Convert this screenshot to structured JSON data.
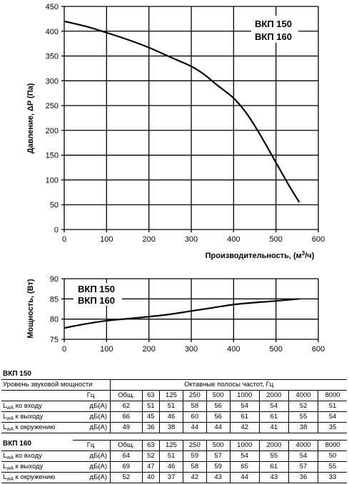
{
  "chart_data": [
    {
      "type": "line",
      "title": "",
      "xlabel": "Производительность, (м³/ч)",
      "ylabel": "Давление, ΔP (Па)",
      "xlim": [
        0,
        600
      ],
      "ylim": [
        0,
        450
      ],
      "x_ticks": [
        0,
        100,
        200,
        300,
        400,
        500,
        600
      ],
      "y_ticks": [
        0,
        50,
        100,
        150,
        200,
        250,
        300,
        350,
        400,
        450
      ],
      "grid": true,
      "legend_text": [
        "ВКП 150",
        "ВКП 160"
      ],
      "legend_placement": "top-right",
      "series": [
        {
          "name": "ВКП 150 / ВКП 160",
          "points": [
            [
              0,
              420
            ],
            [
              50,
              410
            ],
            [
              100,
              397
            ],
            [
              150,
              383
            ],
            [
              200,
              367
            ],
            [
              250,
              348
            ],
            [
              300,
              329
            ],
            [
              330,
              313
            ],
            [
              360,
              292
            ],
            [
              400,
              265
            ],
            [
              430,
              235
            ],
            [
              460,
              195
            ],
            [
              500,
              135
            ],
            [
              530,
              90
            ],
            [
              555,
              55
            ]
          ]
        }
      ]
    },
    {
      "type": "line",
      "title": "",
      "xlabel": "",
      "ylabel": "Мощность, (Вт)",
      "xlim": [
        0,
        600
      ],
      "ylim": [
        75,
        90
      ],
      "x_ticks": [
        0,
        100,
        200,
        300,
        400,
        500,
        600
      ],
      "y_ticks": [
        75,
        80,
        85,
        90
      ],
      "grid": true,
      "legend_text": [
        "ВКП 150",
        "ВКП 160"
      ],
      "legend_placement": "top-left",
      "series": [
        {
          "name": "ВКП 150 / ВКП 160",
          "points": [
            [
              0,
              77.8
            ],
            [
              50,
              78.8
            ],
            [
              100,
              79.6
            ],
            [
              150,
              80.1
            ],
            [
              200,
              80.6
            ],
            [
              250,
              81.2
            ],
            [
              300,
              82.0
            ],
            [
              350,
              82.8
            ],
            [
              400,
              83.6
            ],
            [
              450,
              84.1
            ],
            [
              500,
              84.5
            ],
            [
              555,
              85.0
            ]
          ]
        }
      ]
    }
  ],
  "table150": {
    "title": "ВКП 150",
    "header_left": "Уровень звуковой мощности",
    "header_right": "Октавные полосы частот, Гц",
    "hz_label": "Гц",
    "columns": [
      "Общ.",
      "63",
      "125",
      "250",
      "500",
      "1000",
      "2000",
      "4000",
      "8000"
    ],
    "rows": [
      {
        "label_main": "L",
        "label_sub": "wA",
        "label_rest": " ко входу",
        "unit": "дБ(А)",
        "values": [
          "62",
          "51",
          "51",
          "58",
          "56",
          "54",
          "54",
          "52",
          "51"
        ]
      },
      {
        "label_main": "L",
        "label_sub": "wA",
        "label_rest": " к выходу",
        "unit": "дБ(А)",
        "values": [
          "66",
          "45",
          "46",
          "60",
          "56",
          "61",
          "61",
          "55",
          "54"
        ]
      },
      {
        "label_main": "L",
        "label_sub": "wA",
        "label_rest": " к окружению",
        "unit": "дБ(А)",
        "values": [
          "49",
          "36",
          "38",
          "44",
          "44",
          "42",
          "41",
          "38",
          "35"
        ]
      }
    ]
  },
  "table160": {
    "title": "ВКП 160",
    "hz_label": "Гц",
    "columns": [
      "Общ.",
      "63",
      "125",
      "250",
      "500",
      "1000",
      "2000",
      "4000",
      "8000"
    ],
    "rows": [
      {
        "label_main": "L",
        "label_sub": "wA",
        "label_rest": " ко входу",
        "unit": "дБ(А)",
        "values": [
          "64",
          "52",
          "51",
          "59",
          "57",
          "54",
          "55",
          "54",
          "50"
        ]
      },
      {
        "label_main": "L",
        "label_sub": "wA",
        "label_rest": " к выходу",
        "unit": "дБ(А)",
        "values": [
          "69",
          "47",
          "46",
          "58",
          "59",
          "65",
          "61",
          "57",
          "55"
        ]
      },
      {
        "label_main": "L",
        "label_sub": "wA",
        "label_rest": " к окружению",
        "unit": "дБ(А)",
        "values": [
          "52",
          "40",
          "37",
          "42",
          "43",
          "44",
          "43",
          "36",
          "33"
        ]
      }
    ]
  }
}
